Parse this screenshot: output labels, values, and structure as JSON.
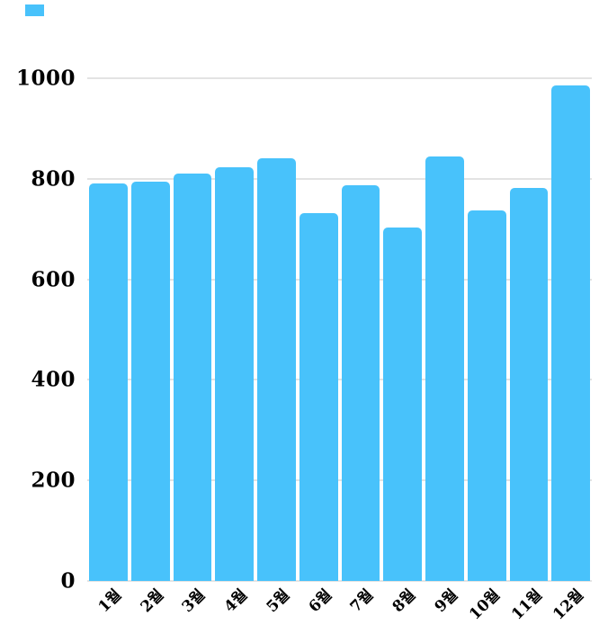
{
  "chart_data": {
    "type": "bar",
    "title": "",
    "xlabel": "",
    "ylabel": "",
    "categories": [
      "1월",
      "2월",
      "3월",
      "4월",
      "5월",
      "6월",
      "7월",
      "8월",
      "9월",
      "10월",
      "11월",
      "12월"
    ],
    "values": [
      790,
      795,
      811,
      823,
      840,
      731,
      787,
      703,
      844,
      737,
      782,
      985
    ],
    "ylim": [
      0,
      1000
    ],
    "ytick_labels": [
      "0",
      "200",
      "400",
      "600",
      "800",
      "1000"
    ],
    "ytick_values": [
      0,
      200,
      400,
      600,
      800,
      1000
    ],
    "grid": true,
    "legend_position": "top-left",
    "bar_color": "#48c2fb",
    "gridline_color": "#e3e3e3",
    "text_color": "#000000",
    "background_color": "#ffffff"
  }
}
